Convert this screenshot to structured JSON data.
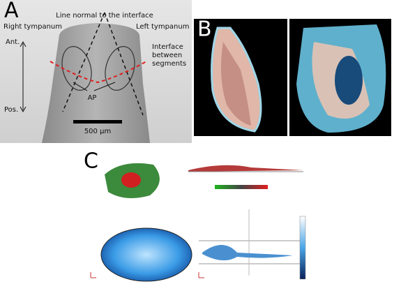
{
  "panel_a": {
    "label": "A",
    "line_normal": "Line normal to the interface",
    "right_tympanum": "Right tympanum",
    "left_tympanum": "Left tympanum",
    "anterior": "Ant.",
    "posterior": "Pos.",
    "interface_label": [
      "Interface",
      "between",
      "segments"
    ],
    "ap": "AP",
    "scale_bar": "500 µm"
  },
  "panel_b": {
    "label": "B"
  },
  "panel_c": {
    "label": "C"
  }
}
